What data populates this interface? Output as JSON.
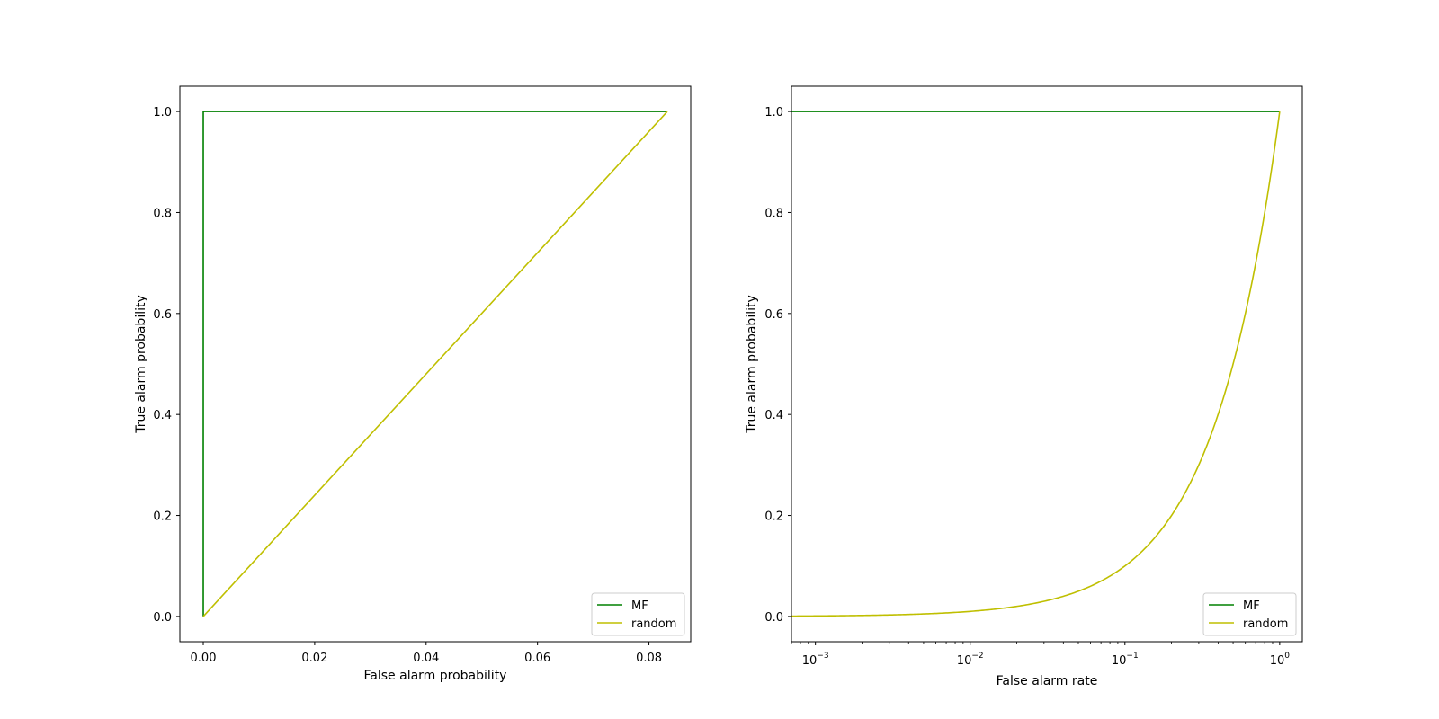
{
  "figure": {
    "background": "#ffffff"
  },
  "chart_data": [
    {
      "type": "line",
      "title": "",
      "xlabel": "False alarm probability",
      "ylabel": "True alarm probability",
      "xscale": "linear",
      "xlim": [
        -0.0042,
        0.0875
      ],
      "ylim": [
        -0.05,
        1.05
      ],
      "xticks": [
        0.0,
        0.02,
        0.04,
        0.06,
        0.08
      ],
      "xtick_labels": [
        "0.00",
        "0.02",
        "0.04",
        "0.06",
        "0.08"
      ],
      "yticks": [
        0.0,
        0.2,
        0.4,
        0.6,
        0.8,
        1.0
      ],
      "ytick_labels": [
        "0.0",
        "0.2",
        "0.4",
        "0.6",
        "0.8",
        "1.0"
      ],
      "grid": false,
      "legend_position": "lower right",
      "series": [
        {
          "name": "MF",
          "color": "#008000",
          "x": [
            0.0,
            0.0,
            0.0833
          ],
          "y": [
            0.0,
            1.0,
            1.0
          ]
        },
        {
          "name": "random",
          "color": "#bfbf00",
          "x": [
            0.0,
            0.0833
          ],
          "y": [
            0.0,
            1.0
          ]
        }
      ]
    },
    {
      "type": "line",
      "title": "",
      "xlabel": "False alarm rate",
      "ylabel": "True alarm probability",
      "xscale": "log",
      "xlim": [
        0.0007,
        1.4
      ],
      "ylim": [
        -0.05,
        1.05
      ],
      "xticks": [
        0.001,
        0.01,
        0.1,
        1.0
      ],
      "xtick_labels": [
        {
          "base": "10",
          "exp": "−3"
        },
        {
          "base": "10",
          "exp": "−2"
        },
        {
          "base": "10",
          "exp": "−1"
        },
        {
          "base": "10",
          "exp": "0"
        }
      ],
      "yticks": [
        0.0,
        0.2,
        0.4,
        0.6,
        0.8,
        1.0
      ],
      "ytick_labels": [
        "0.0",
        "0.2",
        "0.4",
        "0.6",
        "0.8",
        "1.0"
      ],
      "grid": false,
      "legend_position": "lower right",
      "series": [
        {
          "name": "MF",
          "color": "#008000",
          "x": [
            0.0007,
            1.0
          ],
          "y": [
            1.0,
            1.0
          ]
        },
        {
          "name": "random",
          "color": "#bfbf00",
          "x": [
            0.0007,
            0.001,
            0.002,
            0.005,
            0.01,
            0.02,
            0.03,
            0.05,
            0.07,
            0.1,
            0.15,
            0.2,
            0.25,
            0.3,
            0.4,
            0.5,
            0.6,
            0.7,
            0.8,
            0.9,
            1.0
          ],
          "y": [
            0.0,
            0.0,
            0.0,
            0.005,
            0.01,
            0.02,
            0.03,
            0.05,
            0.07,
            0.1,
            0.15,
            0.2,
            0.25,
            0.3,
            0.4,
            0.5,
            0.6,
            0.7,
            0.8,
            0.9,
            1.0
          ]
        }
      ]
    }
  ]
}
